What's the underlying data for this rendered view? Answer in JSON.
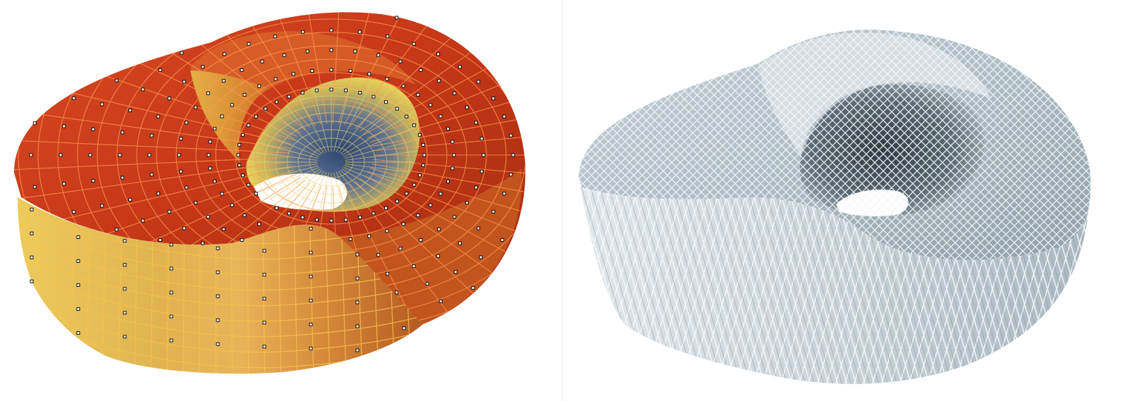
{
  "scene": {
    "left_panel": {
      "subject": "control-mesh-torus-surface",
      "colors": {
        "outer_top": "#c93a1a",
        "outer_top_light": "#e8572c",
        "outer_top_dark": "#9a2a10",
        "side_light": "#eec45a",
        "side_mid": "#d9a24a",
        "side_dark": "#b7652a",
        "inner_yellow": "#f0d35a",
        "inner_blue": "#3c5a80",
        "grid_line": "#ff9a4a",
        "grid_line_side": "#f6c24a",
        "control_point": "#111111"
      }
    },
    "right_panel": {
      "subject": "diagrid-lattice-torus-surface",
      "colors": {
        "surface_light": "#e6ecef",
        "surface_mid": "#b9c6ce",
        "surface_dark": "#55646e",
        "lattice": "#f4f6f7",
        "shadow": "#3e4a52"
      }
    }
  }
}
